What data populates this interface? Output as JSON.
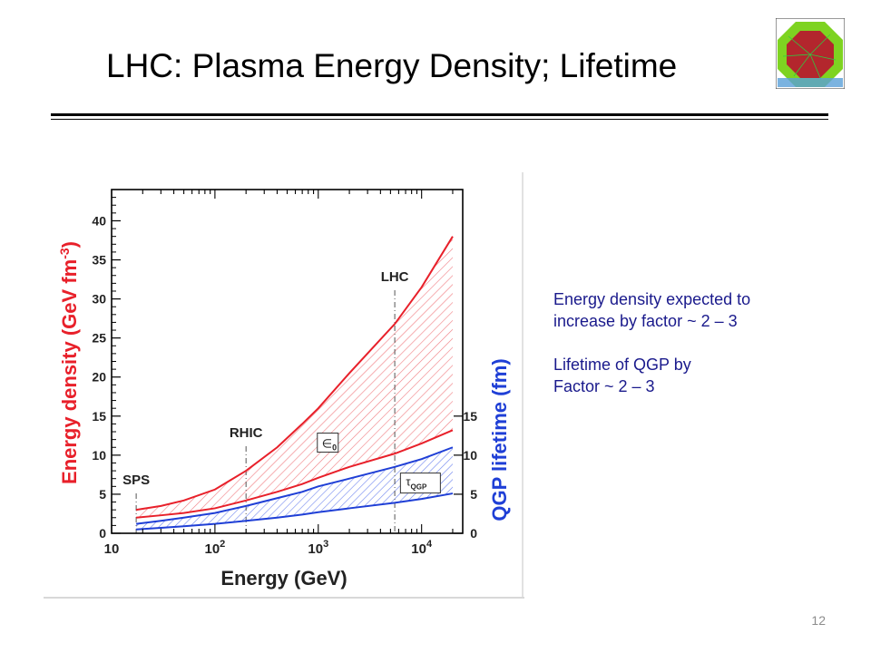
{
  "slide": {
    "title": "LHC: Plasma Energy Density; Lifetime",
    "page_number": "12",
    "notes": [
      "Energy density expected to",
      "increase by factor ~ 2 – 3",
      "Lifetime of QGP by",
      "Factor ~ 2 – 3"
    ]
  },
  "logo": {
    "icon": "octagon-detector-event-logo",
    "colors": {
      "ring": "#7ed321",
      "core": "#c0392b"
    }
  },
  "chart_data": {
    "type": "area",
    "xlabel": "Energy (GeV)",
    "x_scale": "log",
    "xlim": [
      10,
      25000
    ],
    "x_ticks": [
      {
        "value": 10,
        "base": "10",
        "exp": ""
      },
      {
        "value": 100,
        "base": "10",
        "exp": "2"
      },
      {
        "value": 1000,
        "base": "10",
        "exp": "3"
      },
      {
        "value": 10000,
        "base": "10",
        "exp": "4"
      }
    ],
    "y_left": {
      "label": "Energy density (GeV fm",
      "label_exp": "-3",
      "label_close": ")",
      "ylim": [
        0,
        44
      ],
      "ticks": [
        0,
        5,
        10,
        15,
        20,
        25,
        30,
        35,
        40
      ],
      "color": "#e8202a"
    },
    "y_right": {
      "label": "QGP lifetime (fm)",
      "ticks": [
        0,
        5,
        10,
        15
      ],
      "color": "#1f3fd6"
    },
    "vlines": [
      {
        "x": 17.3,
        "label": "SPS"
      },
      {
        "x": 200,
        "label": "RHIC"
      },
      {
        "x": 5500,
        "label": "LHC"
      }
    ],
    "series": [
      {
        "name": "ε0",
        "color": "#e8202a",
        "x": [
          17.3,
          30,
          50,
          100,
          200,
          400,
          700,
          1000,
          2000,
          5500,
          10000,
          20000
        ],
        "upper": [
          3.0,
          3.5,
          4.2,
          5.6,
          8.0,
          11.0,
          14.0,
          16.0,
          20.5,
          26.8,
          31.5,
          38.0
        ],
        "lower": [
          2.0,
          2.3,
          2.6,
          3.2,
          4.2,
          5.3,
          6.3,
          7.1,
          8.5,
          10.2,
          11.5,
          13.2
        ]
      },
      {
        "name": "τQGP",
        "color": "#1f3fd6",
        "x": [
          17.3,
          30,
          50,
          100,
          200,
          400,
          700,
          1000,
          2000,
          5500,
          10000,
          20000
        ],
        "upper": [
          1.2,
          1.6,
          2.0,
          2.6,
          3.5,
          4.5,
          5.3,
          6.0,
          7.0,
          8.5,
          9.5,
          11.0
        ],
        "lower": [
          0.5,
          0.7,
          0.9,
          1.2,
          1.6,
          2.0,
          2.4,
          2.7,
          3.2,
          3.9,
          4.4,
          5.1
        ]
      }
    ],
    "labels": {
      "eps_symbol": "∈",
      "eps_sub": "0",
      "tau_symbol": "τ",
      "tau_sub": "QGP"
    }
  }
}
